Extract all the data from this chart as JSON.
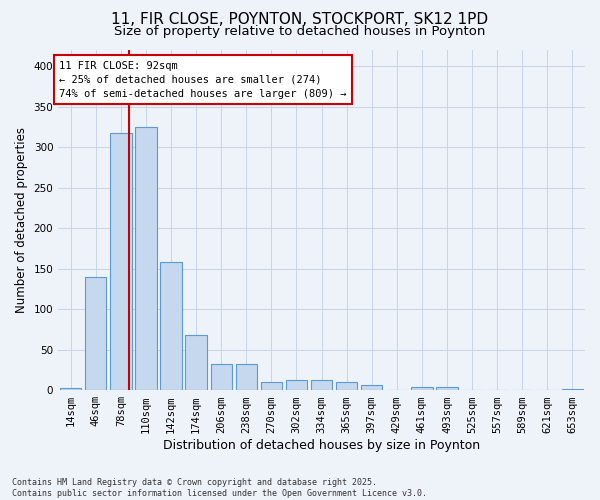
{
  "title": "11, FIR CLOSE, POYNTON, STOCKPORT, SK12 1PD",
  "subtitle": "Size of property relative to detached houses in Poynton",
  "xlabel": "Distribution of detached houses by size in Poynton",
  "ylabel": "Number of detached properties",
  "bar_labels": [
    "14sqm",
    "46sqm",
    "78sqm",
    "110sqm",
    "142sqm",
    "174sqm",
    "206sqm",
    "238sqm",
    "270sqm",
    "302sqm",
    "334sqm",
    "365sqm",
    "397sqm",
    "429sqm",
    "461sqm",
    "493sqm",
    "525sqm",
    "557sqm",
    "589sqm",
    "621sqm",
    "653sqm"
  ],
  "bar_values": [
    3,
    140,
    318,
    325,
    158,
    68,
    32,
    32,
    10,
    13,
    13,
    10,
    6,
    0,
    4,
    4,
    0,
    0,
    0,
    0,
    2
  ],
  "bar_color": "#c5d8ed",
  "bar_edgecolor": "#5b9bd5",
  "vline_x": 2.33,
  "vline_color": "#cc0000",
  "annotation_text": "11 FIR CLOSE: 92sqm\n← 25% of detached houses are smaller (274)\n74% of semi-detached houses are larger (809) →",
  "annotation_box_color": "#cc0000",
  "ylim": [
    0,
    420
  ],
  "yticks": [
    0,
    50,
    100,
    150,
    200,
    250,
    300,
    350,
    400
  ],
  "background_color": "#eef2f9",
  "footer": "Contains HM Land Registry data © Crown copyright and database right 2025.\nContains public sector information licensed under the Open Government Licence v3.0.",
  "title_fontsize": 11,
  "subtitle_fontsize": 9.5,
  "xlabel_fontsize": 9,
  "ylabel_fontsize": 8.5,
  "tick_fontsize": 7.5,
  "footer_fontsize": 6
}
